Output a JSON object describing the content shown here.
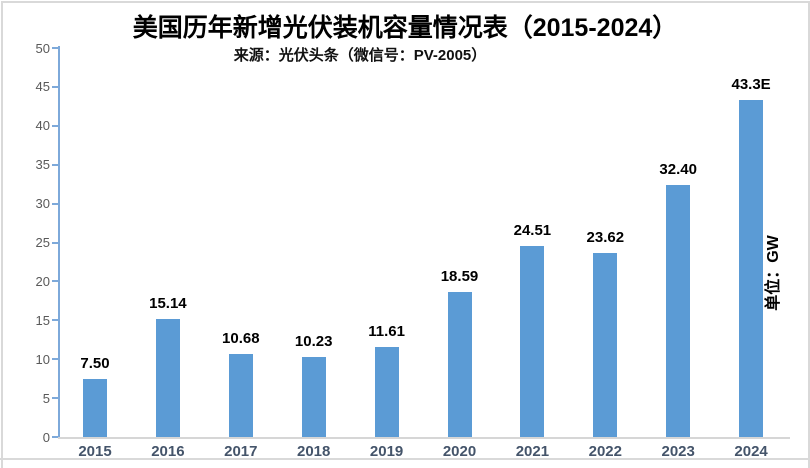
{
  "header": {
    "title": "美国历年新增光伏装机容量情况表（2015-2024）",
    "subtitle": "来源：光伏头条（微信号：PV-2005）"
  },
  "unit_label": "单位：GW",
  "colors": {
    "bar": "#5b9bd5",
    "y_axis": "#7da9da",
    "x_axis": "#d6d6d6",
    "y_tick_text": "#595959",
    "value_label_text": "#000000",
    "category_text": "#44546a",
    "title_text": "#000000",
    "frame": "#d9d9d9"
  },
  "chart_data": {
    "type": "bar",
    "title": "美国历年新增光伏装机容量情况表（2015-2024）",
    "subtitle": "来源：光伏头条（微信号：PV-2005）",
    "ylabel": "单位：GW",
    "xlabel": "",
    "categories": [
      "2015",
      "2016",
      "2017",
      "2018",
      "2019",
      "2020",
      "2021",
      "2022",
      "2023",
      "2024"
    ],
    "values": [
      7.5,
      15.14,
      10.68,
      10.23,
      11.61,
      18.59,
      24.51,
      23.62,
      32.4,
      43.3
    ],
    "value_labels": [
      "7.50",
      "15.14",
      "10.68",
      "10.23",
      "11.61",
      "18.59",
      "24.51",
      "23.62",
      "32.40",
      "43.3E"
    ],
    "ylim": [
      0,
      50
    ],
    "ytick_step": 5,
    "ytick_labels": [
      "0",
      "5",
      "10",
      "15",
      "20",
      "25",
      "30",
      "35",
      "40",
      "45",
      "50"
    ],
    "grid": false,
    "legend": false,
    "bar_color": "#5b9bd5"
  }
}
